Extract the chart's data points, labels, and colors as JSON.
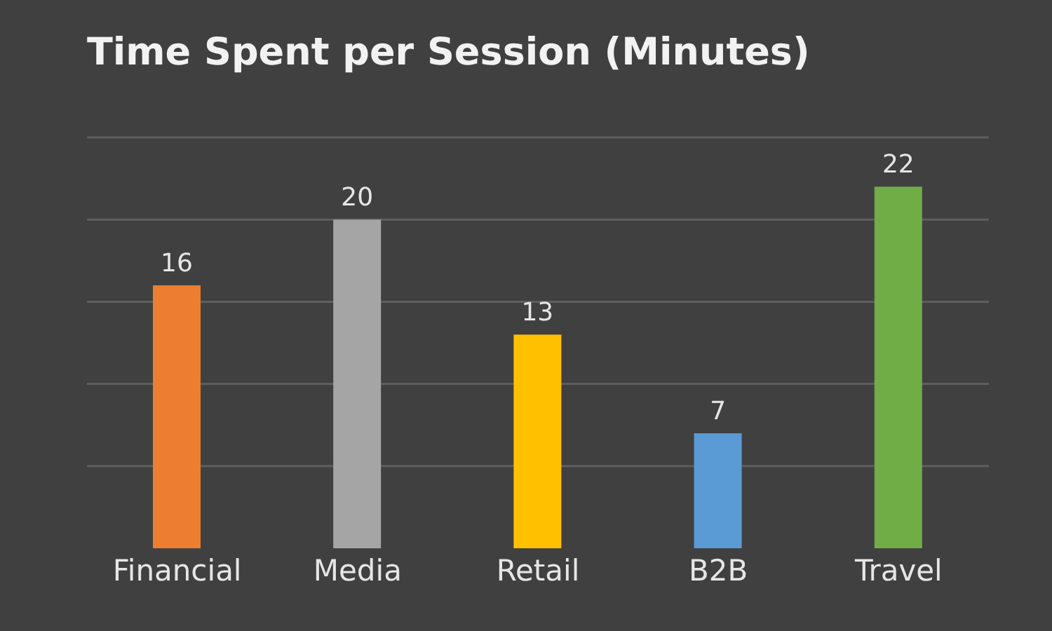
{
  "chart_data": {
    "type": "bar",
    "title": "Time Spent per Session (Minutes)",
    "categories": [
      "Financial",
      "Media",
      "Retail",
      "B2B",
      "Travel"
    ],
    "values": [
      16,
      20,
      13,
      7,
      22
    ],
    "colors": [
      "#ed7d31",
      "#a5a5a5",
      "#ffc000",
      "#5b9bd5",
      "#70ad47"
    ],
    "ylim": [
      0,
      25
    ],
    "yticks": [
      {
        "value": 5,
        "label": null
      },
      {
        "value": 10,
        "label": null
      },
      {
        "value": 15,
        "label": null
      },
      {
        "value": 20,
        "label": null
      },
      {
        "value": 25,
        "label": null
      }
    ],
    "grid": "y",
    "tick_labels": "x",
    "data_labels": true
  }
}
